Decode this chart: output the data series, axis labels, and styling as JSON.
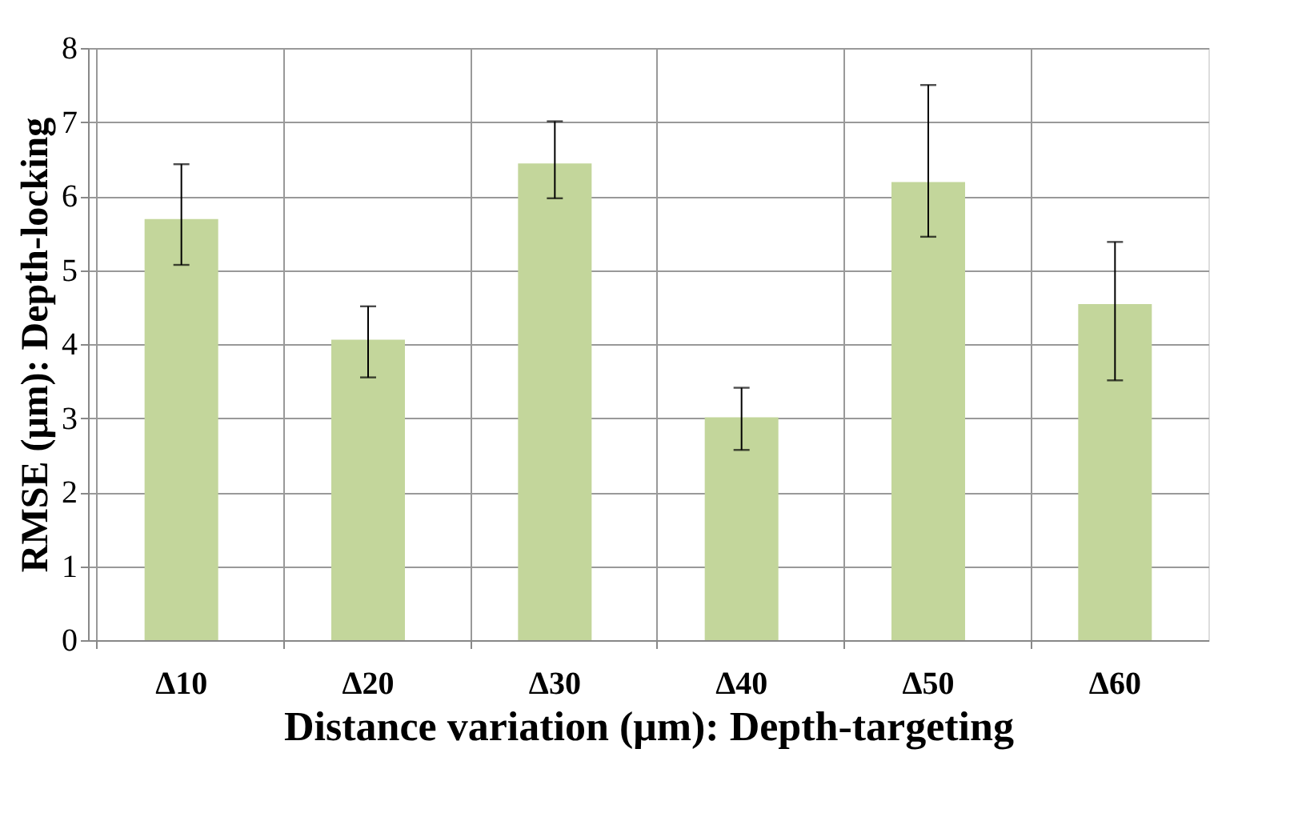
{
  "chart_data": {
    "type": "bar",
    "xlabel": "Distance variation (μm): Depth-targeting",
    "ylabel": "RMSE (μm): Depth-locking",
    "categories": [
      "Δ10",
      "Δ20",
      "Δ30",
      "Δ40",
      "Δ50",
      "Δ60"
    ],
    "values": [
      5.69,
      4.06,
      6.44,
      3.01,
      6.19,
      4.54
    ],
    "errors": [
      [
        5.07,
        6.43
      ],
      [
        3.55,
        4.51
      ],
      [
        5.97,
        7.01
      ],
      [
        2.57,
        3.41
      ],
      [
        5.45,
        7.5
      ],
      [
        3.51,
        5.38
      ]
    ],
    "color": "#c3d69b",
    "ylim": [
      0,
      8
    ],
    "yticks": [
      0,
      1,
      2,
      3,
      4,
      5,
      6,
      7,
      8
    ],
    "grid": true
  }
}
